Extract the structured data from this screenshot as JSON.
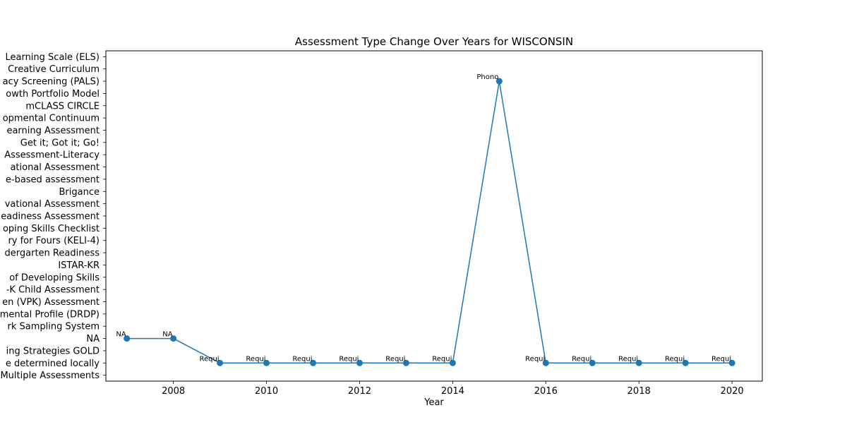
{
  "chart_data": {
    "type": "line",
    "title": "Assessment Type Change Over Years for WISCONSIN",
    "xlabel": "Year",
    "ylabel": "",
    "xlim": [
      2006.55,
      2020.65
    ],
    "x_ticks": [
      2008,
      2010,
      2012,
      2014,
      2016,
      2018,
      2020
    ],
    "x_tick_labels": [
      "2008",
      "2010",
      "2012",
      "2014",
      "2016",
      "2018",
      "2020"
    ],
    "y_categories": [
      "Multiple Assessments",
      "e determined locally",
      "ing Strategies GOLD",
      "NA",
      "rk Sampling System",
      "mental Profile (DRDP)",
      "en (VPK) Assessment",
      "-K Child Assessment",
      "of Developing Skills",
      "ISTAR-KR",
      "dergarten Readiness",
      "ry for Fours (KELI-4)",
      "oping Skills Checklist",
      "eadiness Assessment",
      "vational Assessment",
      "Brigance",
      "e-based assessment",
      "ational Assessment",
      "Assessment-Literacy",
      "Get it; Got it; Go!",
      "earning Assessment",
      "opmental Continuum",
      "mCLASS CIRCLE",
      "owth Portfolio Model",
      "acy Screening (PALS)",
      "Creative Curriculum",
      "Learning Scale (ELS)"
    ],
    "series": [
      {
        "color": "#1f77b4",
        "points": [
          {
            "x": 2007,
            "y": "NA",
            "label": "NA"
          },
          {
            "x": 2008,
            "y": "NA",
            "label": "NA"
          },
          {
            "x": 2009,
            "y": "e determined locally",
            "label": "Requi"
          },
          {
            "x": 2010,
            "y": "e determined locally",
            "label": "Requi"
          },
          {
            "x": 2011,
            "y": "e determined locally",
            "label": "Requi"
          },
          {
            "x": 2012,
            "y": "e determined locally",
            "label": "Requi"
          },
          {
            "x": 2013,
            "y": "e determined locally",
            "label": "Requi"
          },
          {
            "x": 2014,
            "y": "e determined locally",
            "label": "Requi"
          },
          {
            "x": 2015,
            "y": "acy Screening (PALS)",
            "label": "Phono"
          },
          {
            "x": 2016,
            "y": "e determined locally",
            "label": "Requi"
          },
          {
            "x": 2017,
            "y": "e determined locally",
            "label": "Requi"
          },
          {
            "x": 2018,
            "y": "e determined locally",
            "label": "Requi"
          },
          {
            "x": 2019,
            "y": "e determined locally",
            "label": "Requi"
          },
          {
            "x": 2020,
            "y": "e determined locally",
            "label": "Requi"
          }
        ]
      }
    ],
    "grid": false,
    "legend": "none"
  }
}
